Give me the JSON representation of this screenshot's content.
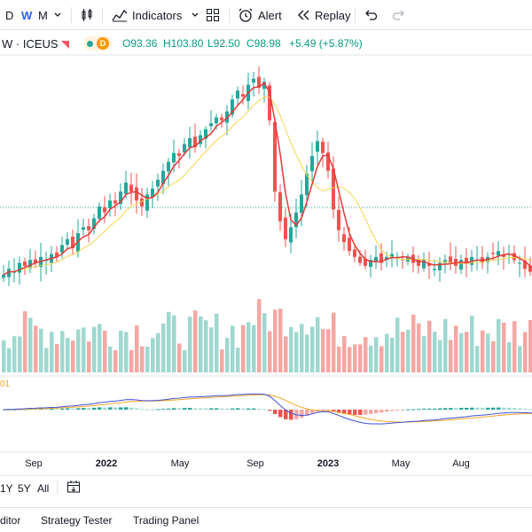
{
  "toolbar": {
    "intervals": [
      "D",
      "W",
      "M"
    ],
    "indicators_label": "Indicators",
    "alert_label": "Alert",
    "replay_label": "Replay"
  },
  "symbol": {
    "name": "W · ICEUS",
    "badge": "D",
    "open": "O93.36",
    "high": "H103.80",
    "low": "L92.50",
    "close": "C98.98",
    "change": "+5.49 (+5.87%)"
  },
  "indicator_label": "01",
  "x_axis": {
    "labels": [
      {
        "text": "Sep",
        "bold": false
      },
      {
        "text": "2022",
        "bold": true
      },
      {
        "text": "May",
        "bold": false
      },
      {
        "text": "Sep",
        "bold": false
      },
      {
        "text": "2023",
        "bold": true
      },
      {
        "text": "May",
        "bold": false
      },
      {
        "text": "Aug",
        "bold": false
      }
    ]
  },
  "range_bar": {
    "buttons": [
      "1Y",
      "5Y",
      "All"
    ]
  },
  "bottom_tabs": [
    "ditor",
    "Strategy Tester",
    "Trading Panel"
  ],
  "colors": {
    "up": "#26a69a",
    "down": "#ef5350",
    "vol_up": "#9ed8d0",
    "vol_down": "#f5a7a4",
    "ma_fast": "#e53935",
    "ma_slow": "#f5d64e",
    "macd": "#3f51d8",
    "signal": "#f5a623"
  },
  "chart_data": {
    "type": "candlestick",
    "closes": [
      76,
      78,
      77,
      80,
      79,
      81,
      80,
      82,
      81,
      83,
      82,
      86,
      88,
      85,
      90,
      92,
      91,
      95,
      99,
      97,
      101,
      100,
      104,
      107,
      104,
      101,
      99,
      103,
      105,
      108,
      111,
      114,
      117,
      116,
      120,
      122,
      119,
      123,
      125,
      127,
      129,
      128,
      131,
      135,
      138,
      136,
      140,
      142,
      139,
      141,
      128,
      104,
      94,
      88,
      92,
      97,
      103,
      110,
      116,
      121,
      117,
      111,
      98,
      91,
      87,
      84,
      82,
      80,
      79,
      81,
      82,
      80,
      82,
      83,
      82,
      81,
      82,
      80,
      79,
      81,
      79,
      78,
      80,
      81,
      80,
      79,
      81,
      80,
      82,
      81,
      80,
      82,
      83,
      84,
      82,
      83,
      81,
      80,
      78,
      77,
      76
    ]
  }
}
